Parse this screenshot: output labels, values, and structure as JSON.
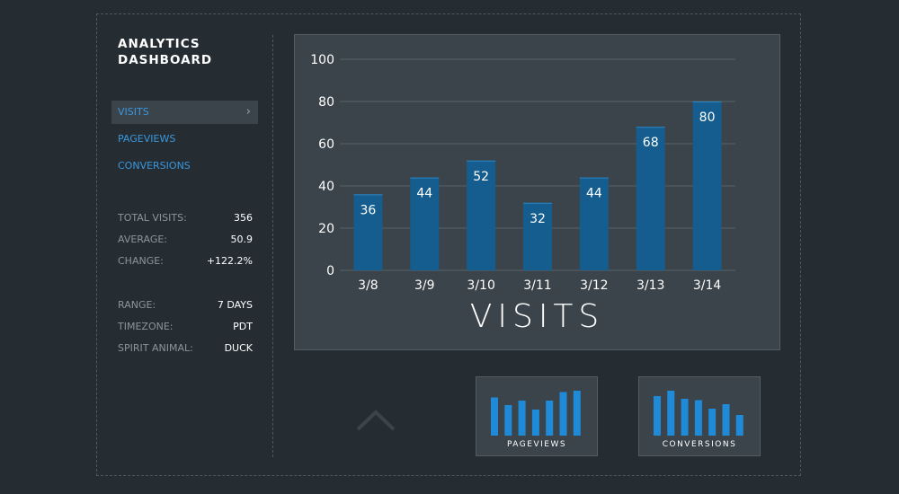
{
  "app": {
    "title": "ANALYTICS DASHBOARD"
  },
  "nav": {
    "items": [
      {
        "label": "VISITS",
        "active": true
      },
      {
        "label": "PAGEVIEWS",
        "active": false
      },
      {
        "label": "CONVERSIONS",
        "active": false
      }
    ],
    "chevron": "›"
  },
  "stats": [
    {
      "label": "TOTAL VISITS:",
      "value": "356"
    },
    {
      "label": "AVERAGE:",
      "value": "50.9"
    },
    {
      "label": "CHANGE:",
      "value": "+122.2%"
    }
  ],
  "meta": [
    {
      "label": "RANGE:",
      "value": "7 DAYS"
    },
    {
      "label": "TIMEZONE:",
      "value": "PDT"
    },
    {
      "label": "SPIRIT ANIMAL:",
      "value": "DUCK"
    }
  ],
  "chart_data": {
    "type": "bar",
    "title": "VISITS",
    "categories": [
      "3/8",
      "3/9",
      "3/10",
      "3/11",
      "3/12",
      "3/13",
      "3/14"
    ],
    "values": [
      36,
      44,
      52,
      32,
      44,
      68,
      80
    ],
    "ylim": [
      0,
      100
    ],
    "yticks": [
      0,
      20,
      40,
      60,
      80,
      100
    ],
    "grid": true,
    "data_labels": true,
    "bar_color": "#145d8e"
  },
  "thumbnails": [
    {
      "label": "PAGEVIEWS",
      "values": [
        0.85,
        0.68,
        0.78,
        0.58,
        0.78,
        0.97,
        1.0
      ]
    },
    {
      "label": "CONVERSIONS",
      "values": [
        0.88,
        1.0,
        0.82,
        0.79,
        0.6,
        0.7,
        0.46
      ]
    }
  ],
  "colors": {
    "accent": "#3a97dd",
    "bar": "#145d8e",
    "thumb_bar": "#1f8ad8",
    "background": "#252d33",
    "panel": "#3b444b"
  },
  "icons": {
    "collapse": "chevron-up-icon"
  }
}
